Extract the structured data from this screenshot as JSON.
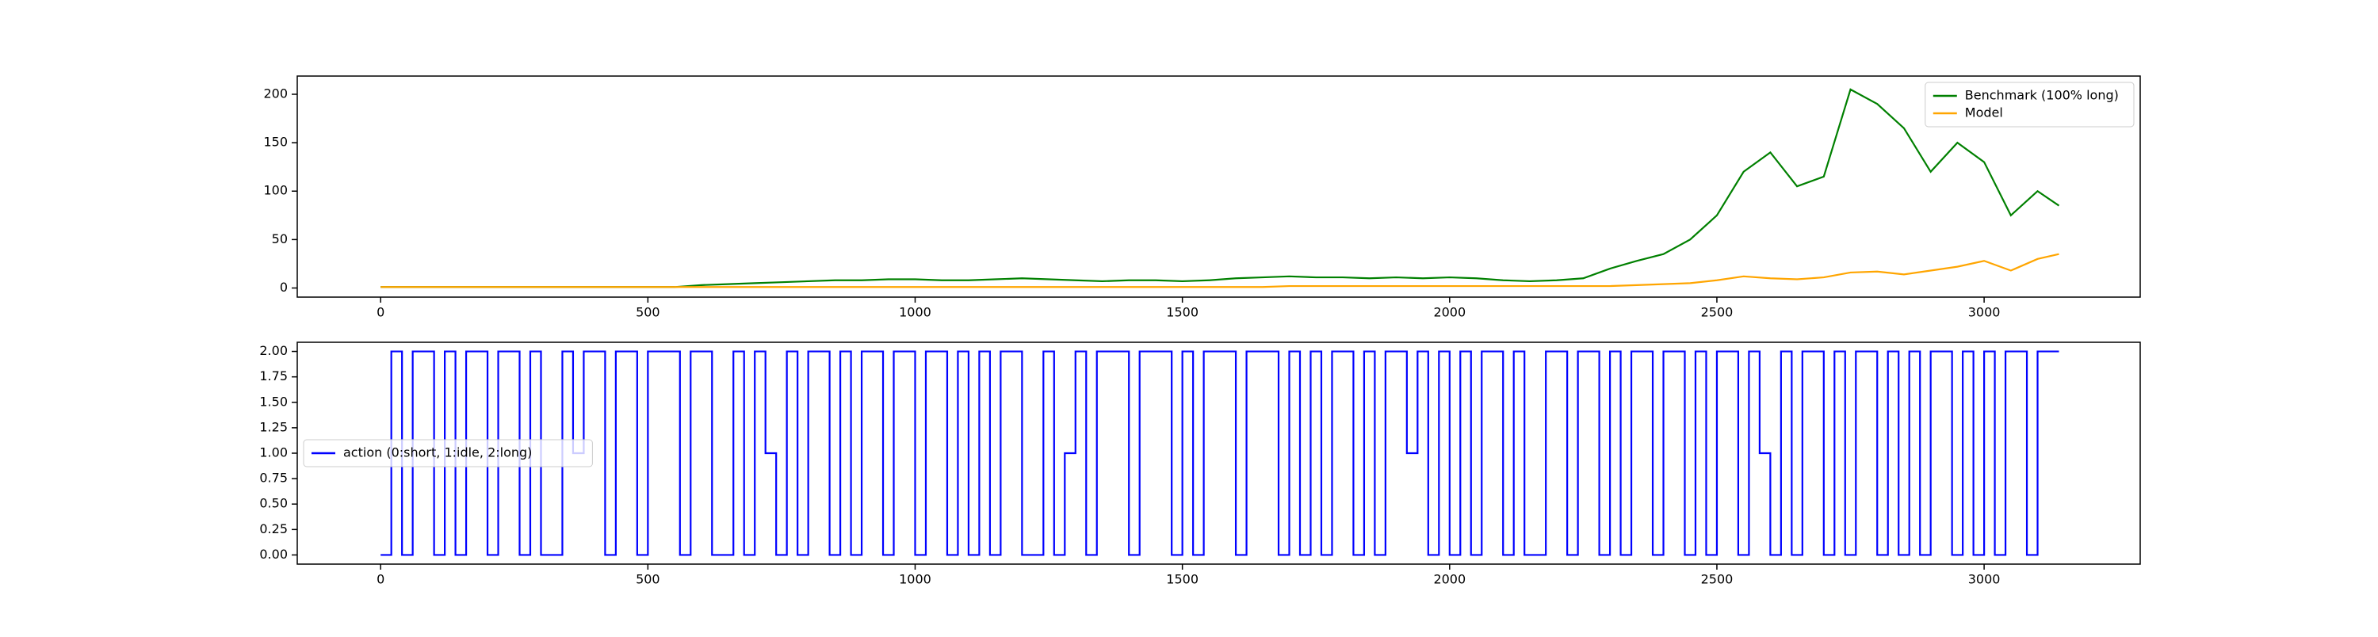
{
  "chart_data": [
    {
      "type": "line",
      "x": [
        0,
        50,
        100,
        150,
        200,
        250,
        300,
        350,
        400,
        450,
        500,
        550,
        600,
        650,
        700,
        750,
        800,
        850,
        900,
        950,
        1000,
        1050,
        1100,
        1150,
        1200,
        1250,
        1300,
        1350,
        1400,
        1450,
        1500,
        1550,
        1600,
        1650,
        1700,
        1750,
        1800,
        1850,
        1900,
        1950,
        2000,
        2050,
        2100,
        2150,
        2200,
        2250,
        2300,
        2350,
        2400,
        2450,
        2500,
        2550,
        2600,
        2650,
        2700,
        2750,
        2800,
        2850,
        2900,
        2950,
        3000,
        3050,
        3100,
        3140
      ],
      "series": [
        {
          "name": "Benchmark (100% long)",
          "color": "#008000",
          "values": [
            1,
            1,
            1,
            1,
            1,
            1,
            1,
            1,
            1,
            1,
            1,
            1,
            3,
            4,
            5,
            6,
            7,
            8,
            8,
            9,
            9,
            8,
            8,
            9,
            10,
            9,
            8,
            7,
            8,
            8,
            7,
            8,
            10,
            11,
            12,
            11,
            11,
            10,
            11,
            10,
            11,
            10,
            8,
            7,
            8,
            10,
            20,
            28,
            35,
            50,
            75,
            120,
            140,
            105,
            115,
            205,
            190,
            165,
            120,
            150,
            130,
            75,
            100,
            85
          ]
        },
        {
          "name": "Model",
          "color": "#ffa500",
          "values": [
            1,
            1,
            1,
            1,
            1,
            1,
            1,
            1,
            1,
            1,
            1,
            1,
            1,
            1,
            1,
            1,
            1,
            1,
            1,
            1,
            1,
            1,
            1,
            1,
            1,
            1,
            1,
            1,
            1,
            1,
            1,
            1,
            1,
            1,
            2,
            2,
            2,
            2,
            2,
            2,
            2,
            2,
            2,
            2,
            2,
            2,
            2,
            3,
            4,
            5,
            8,
            12,
            10,
            9,
            11,
            16,
            17,
            14,
            18,
            22,
            28,
            18,
            30,
            35
          ]
        }
      ],
      "xlim": [
        -156,
        3292
      ],
      "ylim": [
        -9.4,
        218.8
      ],
      "xticks": [
        0,
        500,
        1000,
        1500,
        2000,
        2500,
        3000
      ],
      "yticks": [
        0,
        50,
        100,
        150,
        200
      ],
      "legend": "upper right"
    },
    {
      "type": "line",
      "drawstyle": "steps-post",
      "x": [
        0,
        20,
        40,
        60,
        80,
        100,
        120,
        140,
        160,
        180,
        200,
        220,
        240,
        260,
        280,
        300,
        320,
        340,
        360,
        380,
        400,
        420,
        440,
        460,
        480,
        500,
        520,
        540,
        560,
        580,
        600,
        620,
        640,
        660,
        680,
        700,
        720,
        740,
        760,
        780,
        800,
        820,
        840,
        860,
        880,
        900,
        920,
        940,
        960,
        980,
        1000,
        1020,
        1040,
        1060,
        1080,
        1100,
        1120,
        1140,
        1160,
        1180,
        1200,
        1220,
        1240,
        1260,
        1280,
        1300,
        1320,
        1340,
        1360,
        1380,
        1400,
        1420,
        1440,
        1460,
        1480,
        1500,
        1520,
        1540,
        1560,
        1580,
        1600,
        1620,
        1640,
        1660,
        1680,
        1700,
        1720,
        1740,
        1760,
        1780,
        1800,
        1820,
        1840,
        1860,
        1880,
        1900,
        1920,
        1940,
        1960,
        1980,
        2000,
        2020,
        2040,
        2060,
        2080,
        2100,
        2120,
        2140,
        2160,
        2180,
        2200,
        2220,
        2240,
        2260,
        2280,
        2300,
        2320,
        2340,
        2360,
        2380,
        2400,
        2420,
        2440,
        2460,
        2480,
        2500,
        2520,
        2540,
        2560,
        2580,
        2600,
        2620,
        2640,
        2660,
        2680,
        2700,
        2720,
        2740,
        2760,
        2780,
        2800,
        2820,
        2840,
        2860,
        2880,
        2900,
        2920,
        2940,
        2960,
        2980,
        3000,
        3020,
        3040,
        3060,
        3080,
        3100,
        3120,
        3140
      ],
      "series": [
        {
          "name": "action (0:short, 1:idle, 2:long)",
          "color": "#0000ff",
          "values": [
            0,
            2,
            0,
            2,
            2,
            0,
            2,
            0,
            2,
            2,
            0,
            2,
            2,
            0,
            2,
            0,
            0,
            2,
            1,
            2,
            2,
            0,
            2,
            2,
            0,
            2,
            2,
            2,
            0,
            2,
            2,
            0,
            0,
            2,
            0,
            2,
            1,
            0,
            2,
            0,
            2,
            2,
            0,
            2,
            0,
            2,
            2,
            0,
            2,
            2,
            0,
            2,
            2,
            0,
            2,
            0,
            2,
            0,
            2,
            2,
            0,
            0,
            2,
            0,
            1,
            2,
            0,
            2,
            2,
            2,
            0,
            2,
            2,
            2,
            0,
            2,
            0,
            2,
            2,
            2,
            0,
            2,
            2,
            2,
            0,
            2,
            0,
            2,
            0,
            2,
            2,
            0,
            2,
            0,
            2,
            2,
            1,
            2,
            0,
            2,
            0,
            2,
            0,
            2,
            2,
            0,
            2,
            0,
            0,
            2,
            2,
            0,
            2,
            2,
            0,
            2,
            0,
            2,
            2,
            0,
            2,
            2,
            0,
            2,
            0,
            2,
            2,
            0,
            2,
            1,
            0,
            2,
            0,
            2,
            2,
            0,
            2,
            0,
            2,
            2,
            0,
            2,
            0,
            2,
            0,
            2,
            2,
            0,
            2,
            0,
            2,
            0,
            2,
            2,
            0,
            2,
            2,
            2
          ]
        }
      ],
      "xlim": [
        -156,
        3292
      ],
      "ylim": [
        -0.09,
        2.09
      ],
      "xticks": [
        0,
        500,
        1000,
        1500,
        2000,
        2500,
        3000
      ],
      "yticks": [
        {
          "value": 0,
          "label": "0.00"
        },
        0.25,
        {
          "value": 0.5,
          "label": "0.50"
        },
        0.75,
        {
          "value": 1,
          "label": "1.00"
        },
        1.25,
        {
          "value": 1.5,
          "label": "1.50"
        },
        1.75,
        {
          "value": 2,
          "label": "2.00"
        }
      ],
      "legend": "center left"
    }
  ]
}
